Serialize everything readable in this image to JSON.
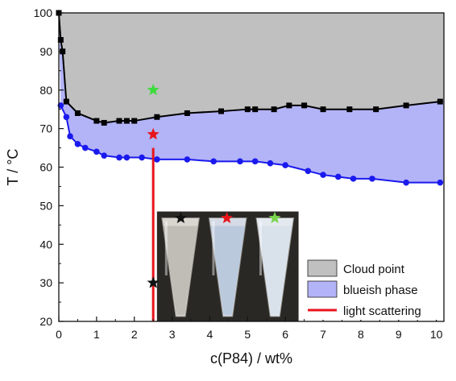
{
  "chart_data": {
    "type": "area",
    "title": "",
    "xlabel": "c(P84) / wt%",
    "ylabel": "T / °C",
    "xlim": [
      0,
      10.2
    ],
    "ylim": [
      20,
      100
    ],
    "xticks": [
      0,
      1,
      2,
      3,
      4,
      5,
      6,
      7,
      8,
      9,
      10
    ],
    "yticks": [
      20,
      30,
      40,
      50,
      60,
      70,
      80,
      90,
      100
    ],
    "grid": false,
    "legend_position": "bottom-right",
    "series": [
      {
        "name": "Cloud point",
        "marker": "square",
        "color": "#000000",
        "fill_color": "#c0c0c0",
        "x": [
          0.0,
          0.05,
          0.1,
          0.2,
          0.5,
          1.0,
          1.2,
          1.6,
          1.8,
          2.0,
          2.6,
          3.4,
          4.3,
          5.0,
          5.2,
          5.7,
          6.1,
          6.5,
          7.0,
          7.7,
          8.4,
          9.2,
          10.1
        ],
        "y": [
          100,
          93,
          90,
          77,
          74,
          72,
          71.5,
          72,
          72,
          72,
          73,
          74,
          74.5,
          75,
          75,
          75,
          76,
          76,
          75,
          75,
          75,
          76,
          77
        ]
      },
      {
        "name": "blueish phase",
        "marker": "circle",
        "color": "#1a1aee",
        "fill_color": "#b3b3f7",
        "x": [
          0.05,
          0.2,
          0.3,
          0.5,
          0.7,
          1.0,
          1.2,
          1.6,
          1.8,
          2.2,
          2.6,
          3.4,
          4.1,
          4.8,
          5.2,
          5.6,
          6.0,
          6.6,
          7.0,
          7.4,
          7.8,
          8.3,
          9.2,
          10.1
        ],
        "y": [
          76,
          73,
          68,
          66,
          65,
          64,
          63,
          62.5,
          62.5,
          62.5,
          62,
          62,
          61.5,
          61.5,
          61.5,
          61,
          60.5,
          59,
          58,
          57.5,
          57,
          57,
          56,
          56
        ]
      },
      {
        "name": "light scattering",
        "marker": "none",
        "color": "#e8141b",
        "x": [
          2.5,
          2.5
        ],
        "y": [
          20,
          65
        ]
      }
    ],
    "star_markers": [
      {
        "x": 2.5,
        "y": 80,
        "color": "#3cdc3c"
      },
      {
        "x": 2.5,
        "y": 68.5,
        "color": "#e8141b"
      },
      {
        "x": 2.5,
        "y": 30,
        "color": "#111111"
      }
    ],
    "inset_photo": {
      "description_markers": [
        {
          "color": "#111111"
        },
        {
          "color": "#e8141b"
        },
        {
          "color": "#78d64c"
        }
      ]
    }
  }
}
